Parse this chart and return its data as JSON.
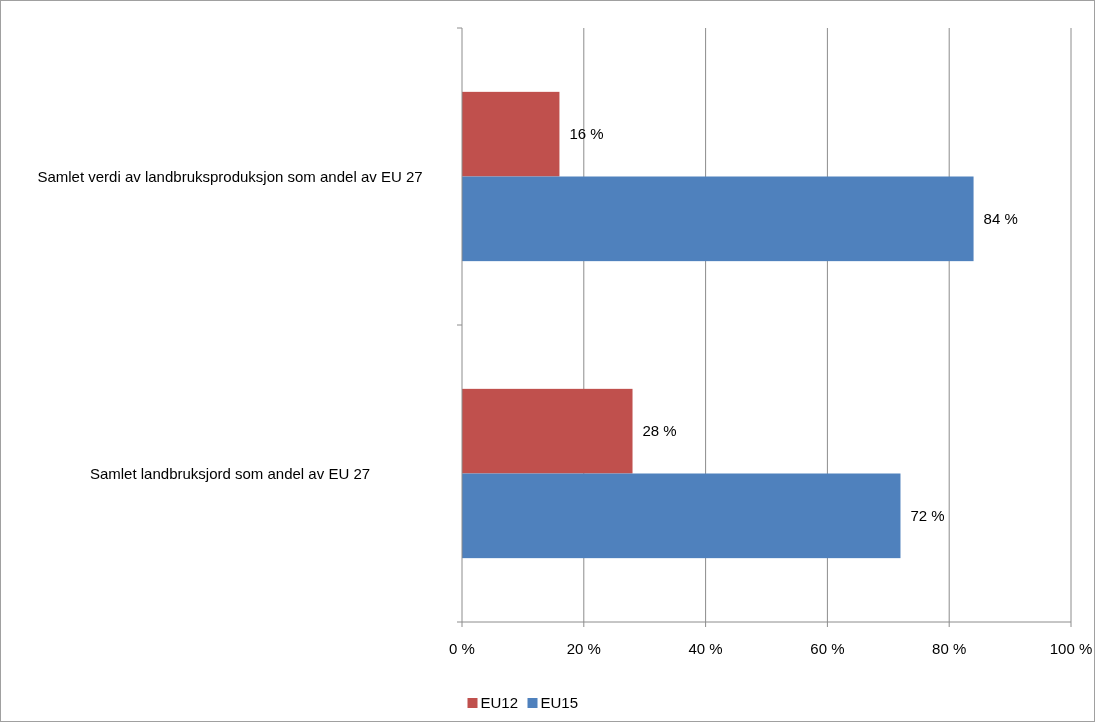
{
  "chart_data": {
    "type": "bar",
    "orientation": "horizontal",
    "categories": [
      "Samlet verdi av landbruksproduksjon som andel av EU 27",
      "Samlet landbruksjord som andel av EU 27"
    ],
    "series": [
      {
        "name": "EU12",
        "color": "#c0504d",
        "values": [
          16,
          28
        ],
        "value_labels": [
          "16 %",
          "28 %"
        ]
      },
      {
        "name": "EU15",
        "color": "#4f81bd",
        "values": [
          84,
          72
        ],
        "value_labels": [
          "84 %",
          "72 %"
        ]
      }
    ],
    "xlim": [
      0,
      100
    ],
    "xticks": [
      {
        "value": 0,
        "label": "0 %"
      },
      {
        "value": 20,
        "label": "20 %"
      },
      {
        "value": 40,
        "label": "40 %"
      },
      {
        "value": 60,
        "label": "60 %"
      },
      {
        "value": 80,
        "label": "80 %"
      },
      {
        "value": 100,
        "label": "100 %"
      }
    ],
    "grid": "x",
    "legend": "bottom"
  }
}
